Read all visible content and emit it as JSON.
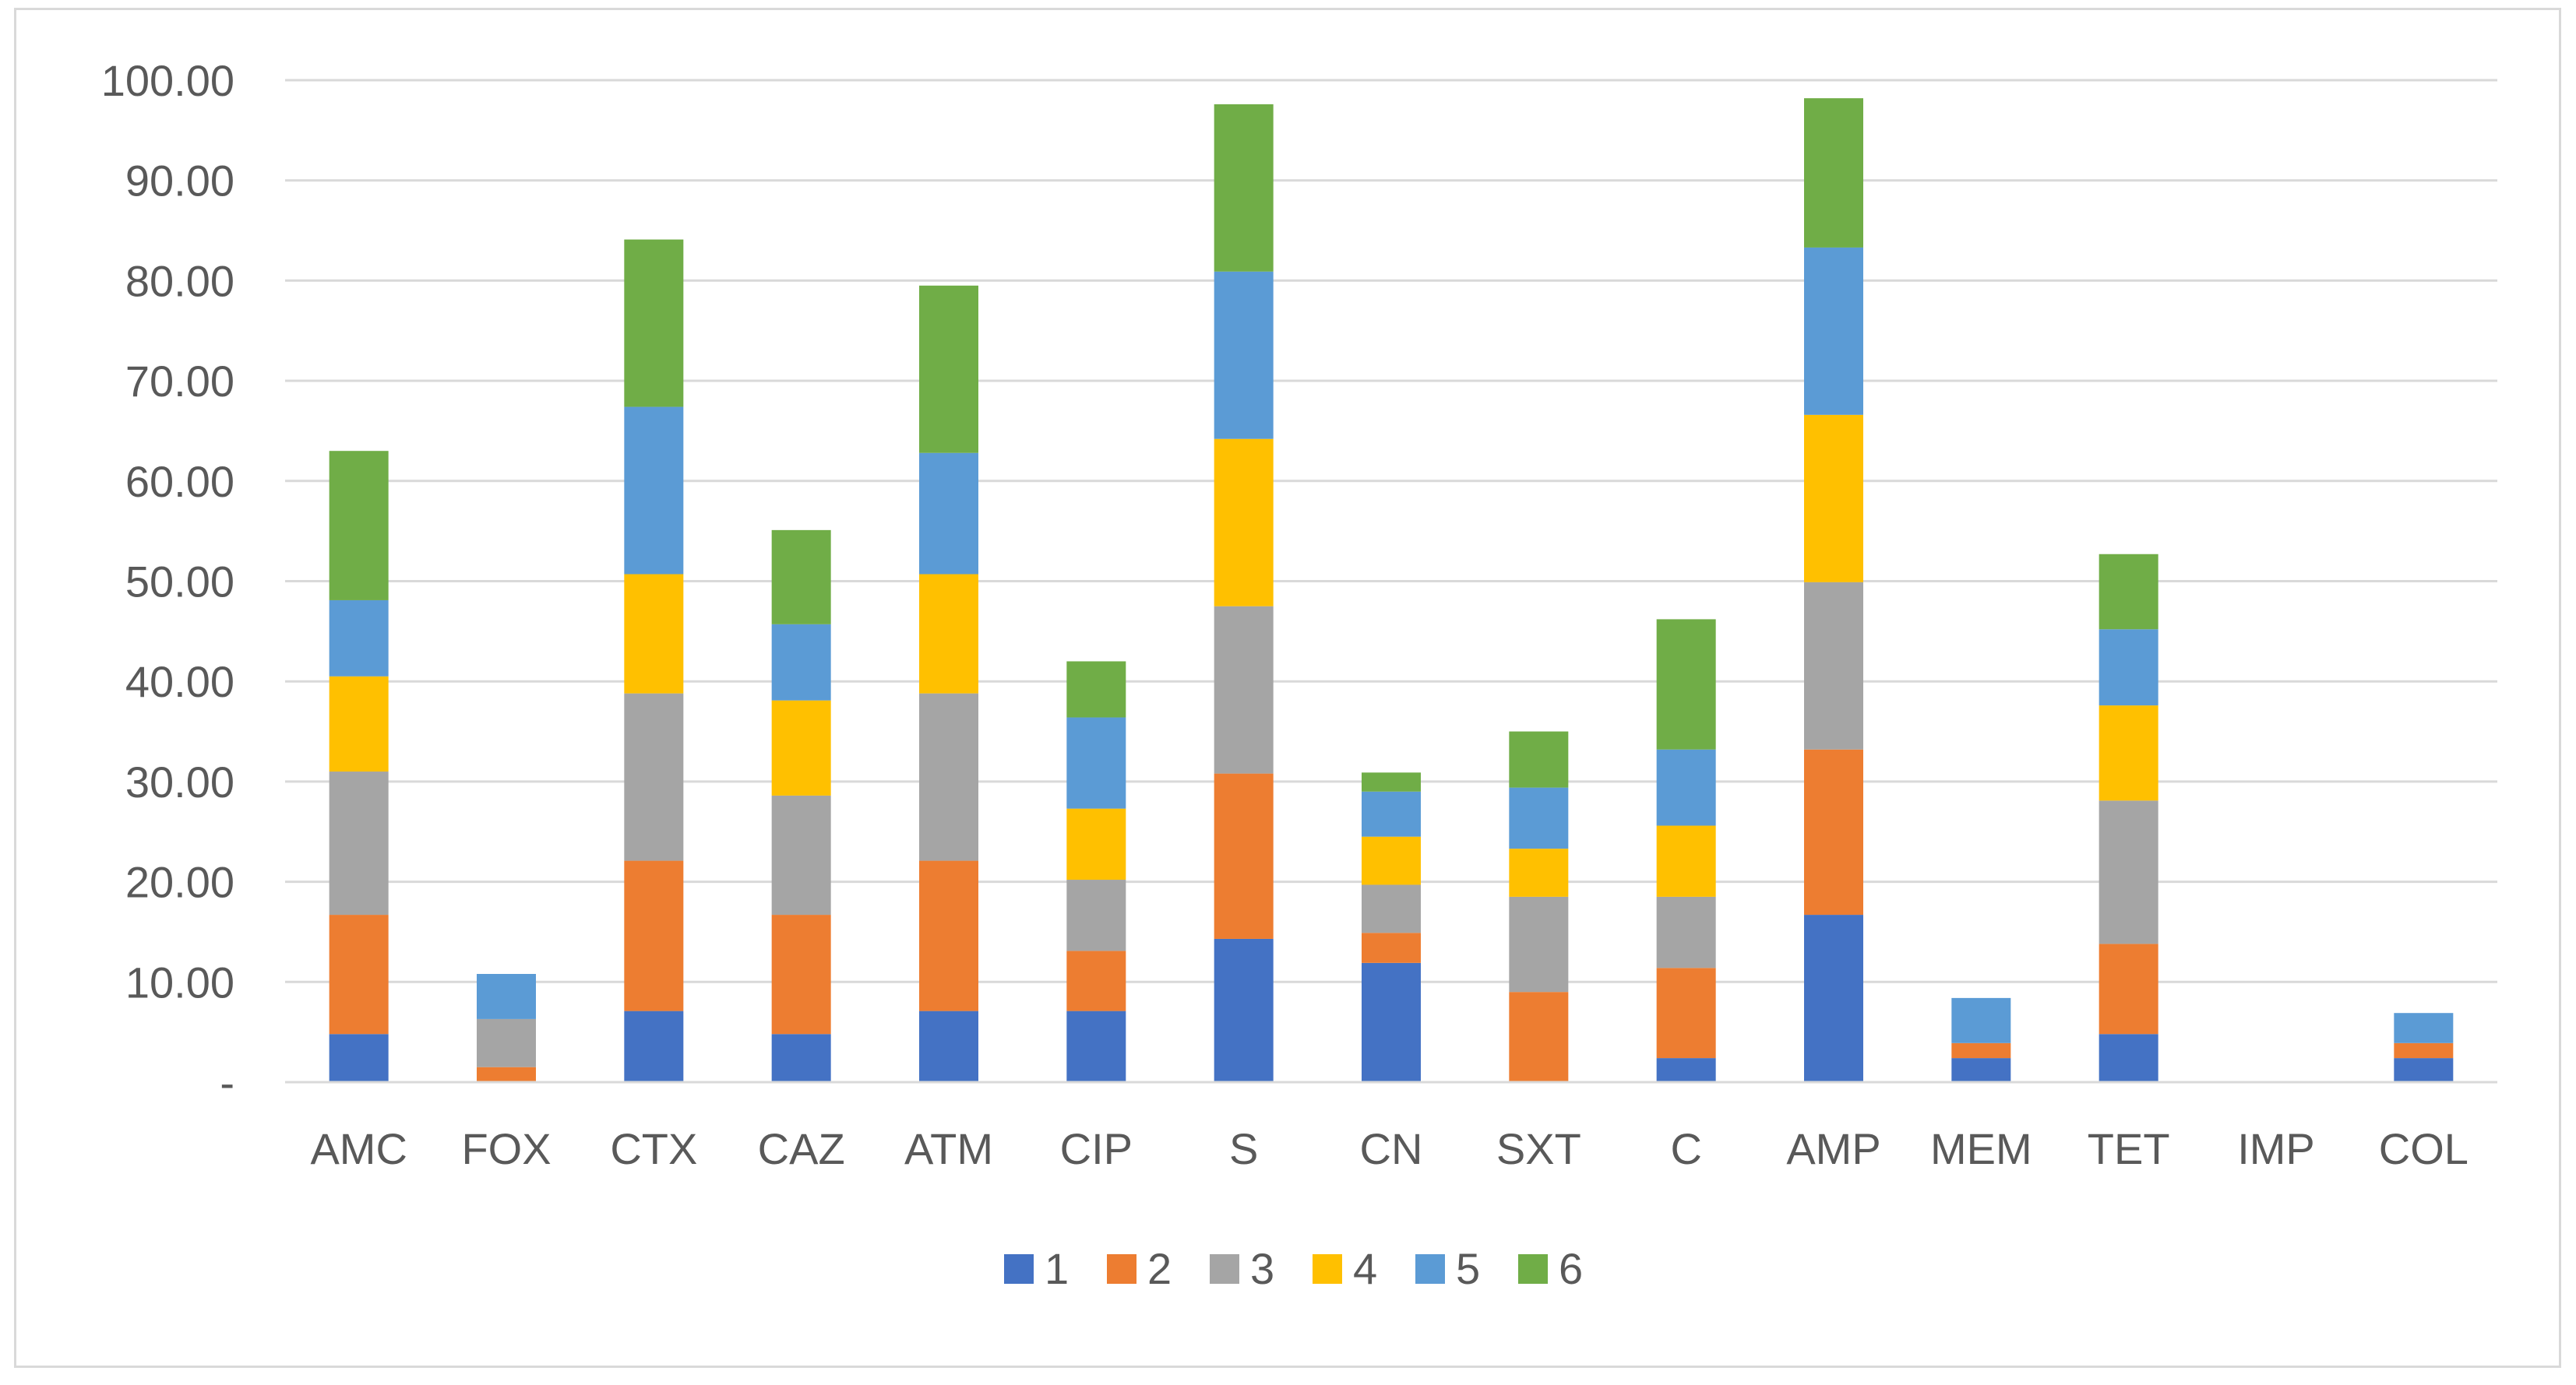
{
  "chart_data": {
    "type": "bar",
    "stacked": true,
    "title": "",
    "xlabel": "",
    "ylabel": "",
    "ylim": [
      0,
      100
    ],
    "y_ticks": [
      "-",
      "10.00",
      "20.00",
      "30.00",
      "40.00",
      "50.00",
      "60.00",
      "70.00",
      "80.00",
      "90.00",
      "100.00"
    ],
    "grid": true,
    "legend_position": "bottom",
    "categories": [
      "AMC",
      "FOX",
      "CTX",
      "CAZ",
      "ATM",
      "CIP",
      "S",
      "CN",
      "SXT",
      "C",
      "AMP",
      "MEM",
      "TET",
      "IMP",
      "COL"
    ],
    "series": [
      {
        "name": "1",
        "color": "#4472C4",
        "values": [
          4.8,
          0,
          7.1,
          4.8,
          7.1,
          7.1,
          14.3,
          11.9,
          0,
          2.4,
          16.7,
          2.4,
          4.8,
          0,
          2.4
        ]
      },
      {
        "name": "2",
        "color": "#ED7D31",
        "values": [
          11.9,
          1.5,
          15.0,
          11.9,
          15.0,
          6.0,
          16.5,
          3.0,
          9.0,
          9.0,
          16.5,
          1.5,
          9.0,
          0,
          1.5
        ]
      },
      {
        "name": "3",
        "color": "#A5A5A5",
        "values": [
          14.3,
          4.8,
          16.7,
          11.9,
          16.7,
          7.1,
          16.7,
          4.8,
          9.5,
          7.1,
          16.7,
          0,
          14.3,
          0,
          0
        ]
      },
      {
        "name": "4",
        "color": "#FFC000",
        "values": [
          9.5,
          0,
          11.9,
          9.5,
          11.9,
          7.1,
          16.7,
          4.8,
          4.8,
          7.1,
          16.7,
          0,
          9.5,
          0,
          0
        ]
      },
      {
        "name": "5",
        "color": "#5B9BD5",
        "values": [
          7.6,
          4.5,
          16.7,
          7.6,
          12.1,
          9.1,
          16.7,
          4.5,
          6.1,
          7.6,
          16.7,
          4.5,
          7.6,
          0,
          3.0
        ]
      },
      {
        "name": "6",
        "color": "#70AD47",
        "values": [
          14.9,
          0,
          16.7,
          9.4,
          16.7,
          5.6,
          16.7,
          1.9,
          5.6,
          13.0,
          14.9,
          0,
          7.5,
          0,
          0
        ]
      }
    ]
  }
}
